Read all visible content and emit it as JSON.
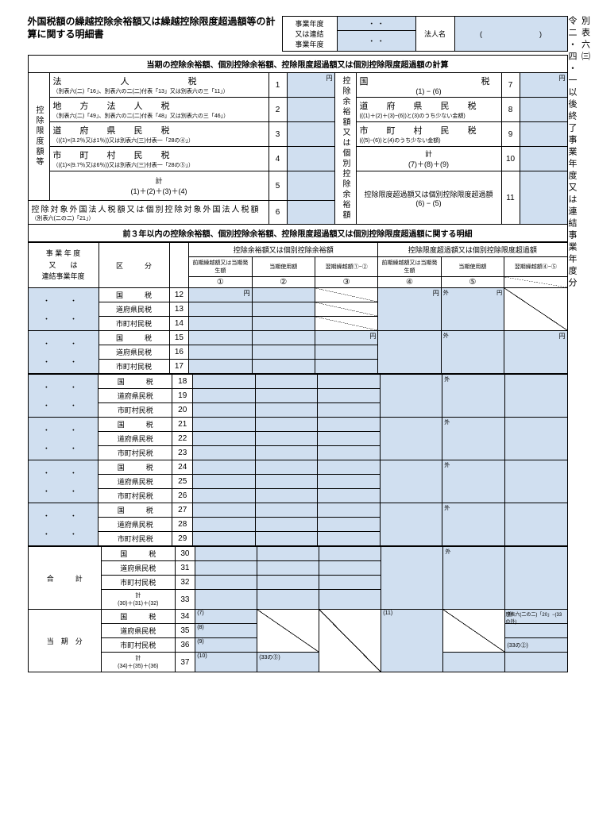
{
  "side": {
    "heading": "別表六㈢",
    "sub": "令二・四・一以後終了事業年度又は連結事業年度分"
  },
  "title": "外国税額の繰越控除余裕額又は繰越控除限度超過額等の計算に関する明細書",
  "hdr": {
    "l1": "事業年度",
    "l2": "又は連結",
    "l3": "事業年度",
    "sep": "・   ・",
    "corp": "法人名"
  },
  "sect1": "当期の控除余裕額、個別控除余裕額、控除限度超過額又は個別控除限度超過額の計算",
  "left_v": "控除限度額等",
  "rows_left": {
    "r1": {
      "big": "法　　　　人　　　　税",
      "sm": "（別表六(二)「16」、別表六の二(二)付表「13」又は別表六の三「11」）",
      "n": "1"
    },
    "r2": {
      "big": "地　方　法　人　税",
      "sm": "（別表六(二)「49」、別表六の二(二)付表「48」又は別表六の三「46」）",
      "n": "2"
    },
    "r3": {
      "big": "道　府　県　民　税",
      "sm": "（((1)×(3.2％又は1％))又は別表六(三)付表一「28の④」）",
      "n": "3"
    },
    "r4": {
      "big": "市　町　村　民　税",
      "sm": "（((1)×(9.7％又は6％))又は別表六(三)付表一「28の⑤」）",
      "n": "4"
    },
    "r5": {
      "big": "計",
      "sm": "(1)＋(2)＋(3)＋(4)",
      "n": "5"
    },
    "r6": {
      "big": "控除対象外国法人税額又は個別控除対象外国法人税額",
      "sm": "（別表六(二の二)「21」）",
      "n": "6"
    }
  },
  "right_v": "控除余裕額又は個別控除余裕額",
  "rows_right": {
    "r7": {
      "big": "国　　　　　　　　税",
      "sm": "(1) − (6)",
      "n": "7"
    },
    "r8": {
      "big": "道　府　県　民　税",
      "sm": "(((1)＋(2)＋(3)−(6))と(3)のうち少ない金額)",
      "n": "8"
    },
    "r9": {
      "big": "市　町　村　民　税",
      "sm": "(((5)−(6))と(4)のうち少ない金額)",
      "n": "9"
    },
    "r10": {
      "big": "計",
      "sm": "(7)＋(8)＋(9)",
      "n": "10"
    },
    "r11": {
      "big": "控除限度超過額又は個別控除限度超過額",
      "sm": "(6) − (5)",
      "n": "11"
    }
  },
  "sect2": "前３年以内の控除余裕額、個別控除余裕額、控除限度超過額又は個別控除限度超過額に関する明細",
  "colhead": {
    "c1": "事業年度又は連結事業年度",
    "c2": "区　　　分",
    "g1": "控除余裕額又は個別控除余裕額",
    "g2": "控除限度超過額又は個別控除限度超過額",
    "h1": "前期繰越額又は当期発生額",
    "h2": "当期使用額",
    "h3": "翌期繰越額①−②",
    "h4": "前期繰越額又は当期発生額",
    "h5": "当期使用額",
    "h6": "翌期繰越額④−⑤",
    "n1": "①",
    "n2": "②",
    "n3": "③",
    "n4": "④",
    "n5": "⑤"
  },
  "kubun": {
    "kokuzei": "国　　　税",
    "dofuken": "道府県民税",
    "shichoson": "市町村民税"
  },
  "goukei": "合　　　計",
  "goukei_kei": "計\n(30)＋(31)＋(32)",
  "touki": "当　期　分",
  "touki_kei": "計\n(34)＋(35)＋(36)",
  "dots": "・　・",
  "gai": "外",
  "yen": "円",
  "notes": {
    "n34": "(7)",
    "n35": "(8)",
    "n36": "(9)",
    "n37": "(10)",
    "n37b": "(33の⑤)",
    "n34r": "(11)",
    "n34g": "別表六(二の二)「20」−(33の外)",
    "n36g": "(33の②)"
  },
  "rownums": [
    "12",
    "13",
    "14",
    "15",
    "16",
    "17",
    "18",
    "19",
    "20",
    "21",
    "22",
    "23",
    "24",
    "25",
    "26",
    "27",
    "28",
    "29",
    "30",
    "31",
    "32",
    "33",
    "34",
    "35",
    "36",
    "37"
  ],
  "colors": {
    "blue": "#d0dff0"
  }
}
